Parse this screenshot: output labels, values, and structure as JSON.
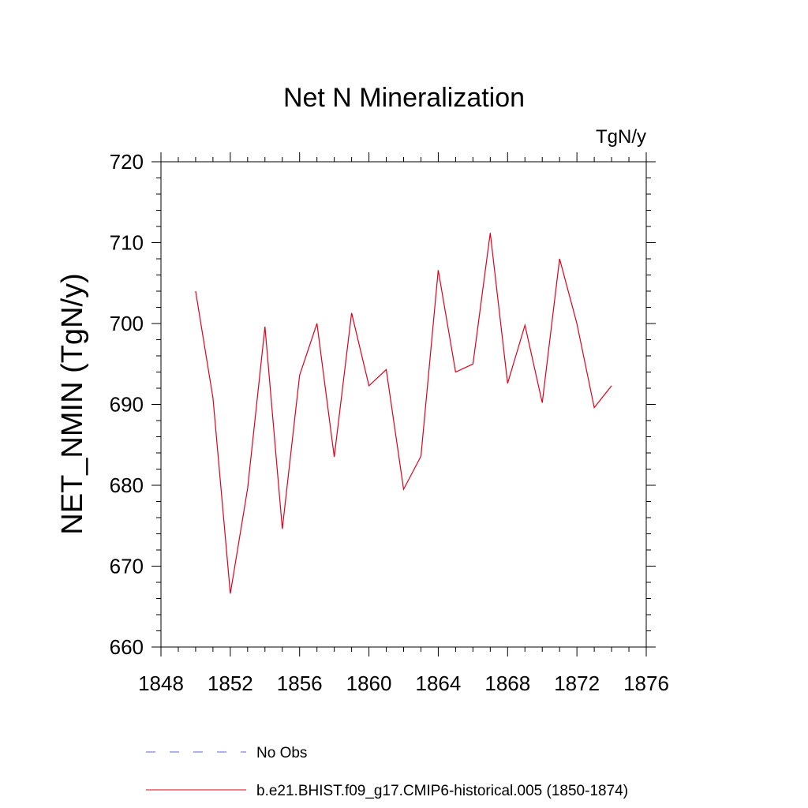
{
  "chart_data": {
    "type": "line",
    "title": "Net N Mineralization",
    "units": "TgN/y",
    "xlabel": "",
    "ylabel": "NET_NMIN  (TgN/y)",
    "xlim": [
      1848,
      1876
    ],
    "ylim": [
      660,
      720
    ],
    "x_ticks": [
      "1848",
      "1852",
      "1856",
      "1860",
      "1864",
      "1868",
      "1872",
      "1876"
    ],
    "y_ticks": [
      "660",
      "670",
      "680",
      "690",
      "700",
      "710",
      "720"
    ],
    "grid": false,
    "legend_position": "bottom",
    "series": [
      {
        "name": "b.e21.BHIST.f09_g17.CMIP6-historical.005 (1850-1874)",
        "color": "#e0001a",
        "style": "solid",
        "x": [
          1850,
          1851,
          1852,
          1853,
          1854,
          1855,
          1856,
          1857,
          1858,
          1859,
          1860,
          1861,
          1862,
          1863,
          1864,
          1865,
          1866,
          1867,
          1868,
          1869,
          1870,
          1871,
          1872,
          1873,
          1874
        ],
        "y": [
          704.0,
          690.8,
          666.6,
          679.6,
          699.6,
          674.6,
          693.6,
          700.0,
          683.5,
          701.3,
          692.3,
          694.3,
          679.5,
          683.6,
          706.6,
          694.0,
          695.0,
          711.2,
          692.6,
          699.8,
          690.2,
          708.0,
          700.0,
          689.6,
          692.3
        ]
      }
    ],
    "legend": [
      {
        "label": "No Obs",
        "color": "#6666cc",
        "style": "dashed"
      },
      {
        "label": "b.e21.BHIST.f09_g17.CMIP6-historical.005 (1850-1874)",
        "color": "#e0001a",
        "style": "solid"
      }
    ]
  }
}
